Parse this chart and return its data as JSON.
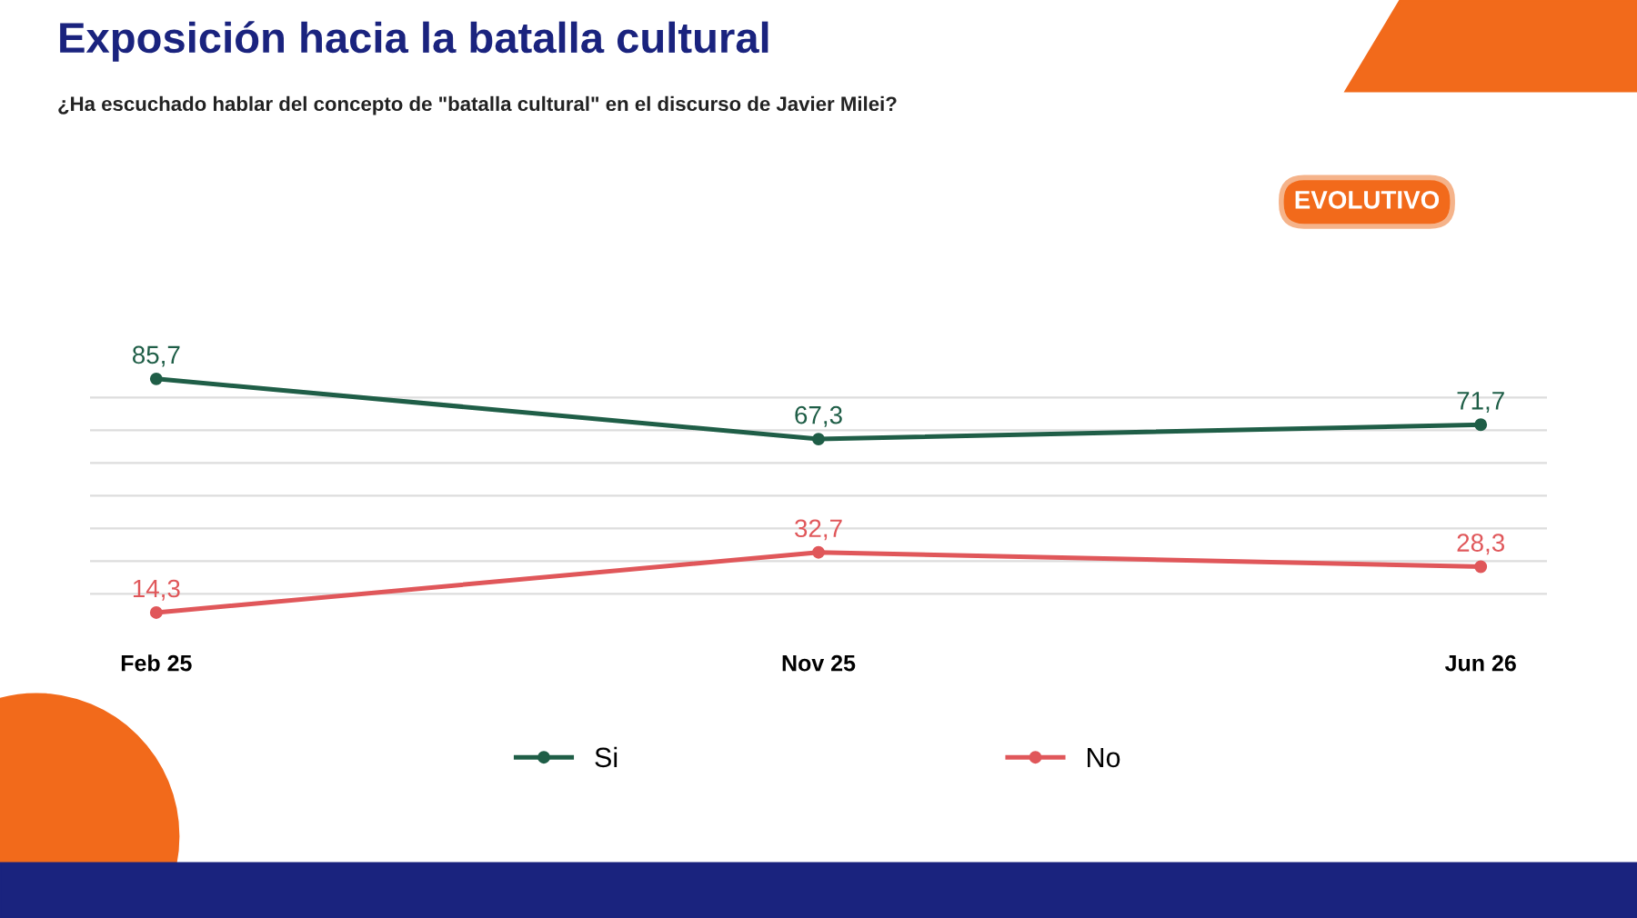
{
  "chart_data": {
    "type": "line",
    "title": "Exposición hacia la batalla cultural",
    "subtitle": "¿Ha escuchado hablar del concepto de \"batalla cultural\" en el discurso de Javier Milei?",
    "annotations": [
      "EVOLUTIVO"
    ],
    "categories": [
      "Feb 25",
      "Nov 25",
      "Jun 26"
    ],
    "series": [
      {
        "name": "Si",
        "color": "#1f5e47",
        "values": [
          85.7,
          67.3,
          71.7
        ],
        "value_labels": [
          "85,7",
          "67,3",
          "71,7"
        ]
      },
      {
        "name": "No",
        "color": "#e0575a",
        "values": [
          14.3,
          32.7,
          28.3
        ],
        "value_labels": [
          "14,3",
          "32,7",
          "28,3"
        ]
      }
    ],
    "tick_labels": "x",
    "grid": "y",
    "legend": "bottom",
    "marker": "circle",
    "line_style": "solid"
  }
}
